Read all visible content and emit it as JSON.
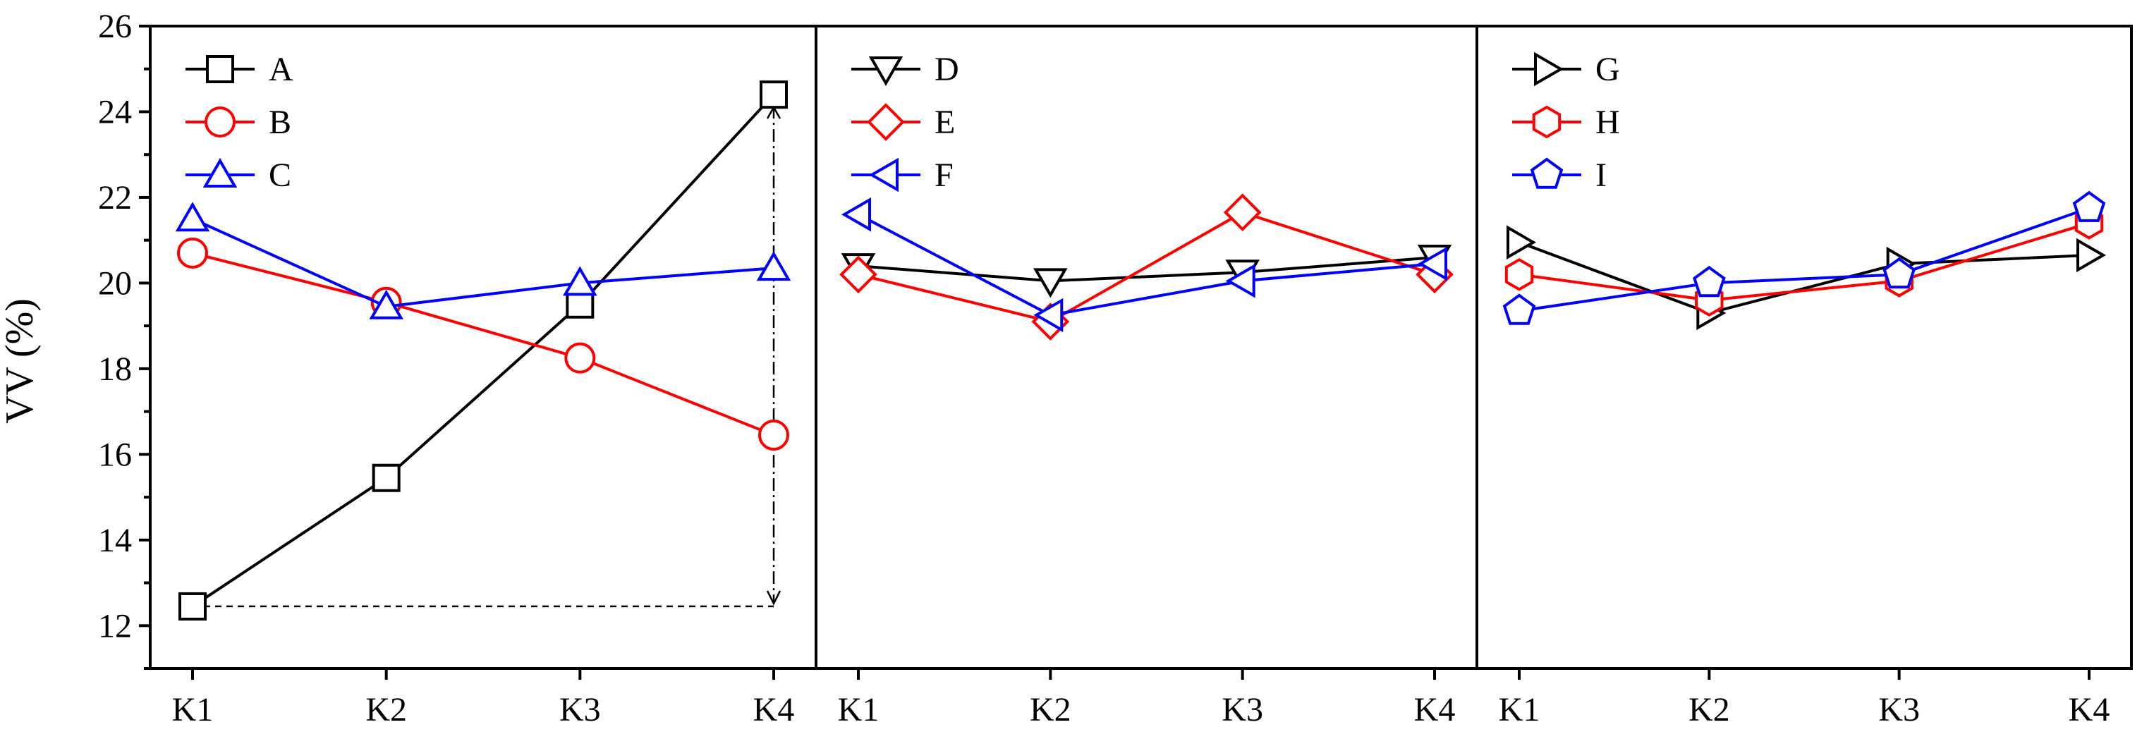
{
  "chart_data": {
    "type": "line",
    "ylabel": "VV (%)",
    "ylim": [
      11,
      26
    ],
    "yticks": [
      12,
      14,
      16,
      18,
      20,
      22,
      24,
      26
    ],
    "grid": false,
    "legend_position": "top-left",
    "panels": [
      {
        "categories": [
          "K1",
          "K2",
          "K3",
          "K4"
        ],
        "series": [
          {
            "name": "A",
            "marker": "square",
            "color": "#000000",
            "values": [
              12.45,
              15.45,
              19.5,
              24.4
            ]
          },
          {
            "name": "B",
            "marker": "circle",
            "color": "#ff0000",
            "values": [
              20.7,
              19.55,
              18.25,
              16.45
            ]
          },
          {
            "name": "C",
            "marker": "triangle-up",
            "color": "#0000ff",
            "values": [
              21.5,
              19.45,
              20.0,
              20.35
            ]
          }
        ],
        "annotation": {
          "from_x": "K1",
          "to_x": "K4",
          "y_low": 12.45,
          "y_high": 24.4
        }
      },
      {
        "categories": [
          "K1",
          "K2",
          "K3",
          "K4"
        ],
        "series": [
          {
            "name": "D",
            "marker": "triangle-down",
            "color": "#000000",
            "values": [
              20.4,
              20.05,
              20.25,
              20.6
            ]
          },
          {
            "name": "E",
            "marker": "diamond",
            "color": "#ff0000",
            "values": [
              20.2,
              19.1,
              21.65,
              20.2
            ]
          },
          {
            "name": "F",
            "marker": "triangle-left",
            "color": "#0000ff",
            "values": [
              21.6,
              19.25,
              20.05,
              20.45
            ]
          }
        ]
      },
      {
        "categories": [
          "K1",
          "K2",
          "K3",
          "K4"
        ],
        "series": [
          {
            "name": "G",
            "marker": "triangle-right",
            "color": "#000000",
            "values": [
              20.95,
              19.3,
              20.45,
              20.65
            ]
          },
          {
            "name": "H",
            "marker": "hexagon",
            "color": "#ff0000",
            "values": [
              20.2,
              19.6,
              20.05,
              21.4
            ]
          },
          {
            "name": "I",
            "marker": "pentagon",
            "color": "#0000ff",
            "values": [
              19.35,
              20.0,
              20.2,
              21.75
            ]
          }
        ]
      }
    ]
  }
}
